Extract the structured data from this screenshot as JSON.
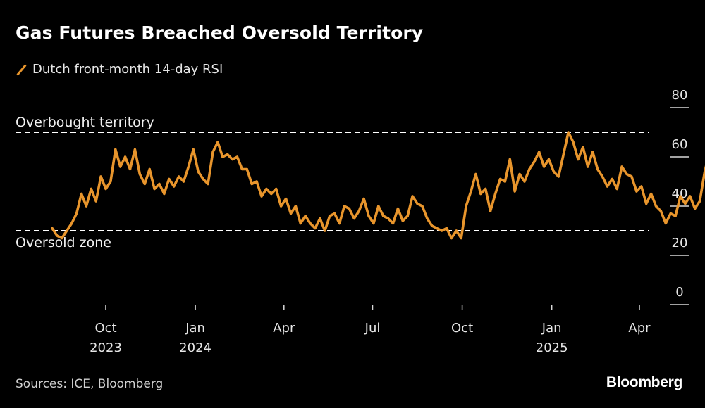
{
  "header": {
    "title": "Gas Futures Breached Oversold Territory"
  },
  "footer": {
    "source": "Sources: ICE, Bloomberg",
    "brand": "Bloomberg"
  },
  "colors": {
    "background": "#000000",
    "series": "#e8952c",
    "text": "#ffffff",
    "reference_lines": "#ffffff"
  },
  "chart_data": {
    "type": "line",
    "title": "Gas Futures Breached Oversold Territory",
    "xlabel": "",
    "ylabel": "",
    "ylim": [
      0,
      80
    ],
    "yticks": [
      0,
      20,
      40,
      60,
      80
    ],
    "ytick_labels": [
      "0",
      "20",
      "40",
      "60",
      "80"
    ],
    "y_axis_side": "right",
    "grid": false,
    "legend_placement": "top-left",
    "xlim": [
      "2023-08-01",
      "2025-04-15"
    ],
    "xticks": [
      {
        "date": "2023-10-01",
        "label": "Oct",
        "year": "2023"
      },
      {
        "date": "2024-01-01",
        "label": "Jan",
        "year": "2024"
      },
      {
        "date": "2024-04-01",
        "label": "Apr",
        "year": ""
      },
      {
        "date": "2024-07-01",
        "label": "Jul",
        "year": ""
      },
      {
        "date": "2024-10-01",
        "label": "Oct",
        "year": ""
      },
      {
        "date": "2025-01-01",
        "label": "Jan",
        "year": "2025"
      },
      {
        "date": "2025-04-01",
        "label": "Apr",
        "year": ""
      }
    ],
    "reference_lines": [
      {
        "value": 70,
        "label": "Overbought territory",
        "label_position": "above"
      },
      {
        "value": 30,
        "label": "Oversold zone",
        "label_position": "below"
      }
    ],
    "series": [
      {
        "name": "Dutch front-month 14-day RSI",
        "x_start": "2023-08-07",
        "step_days": 5,
        "values": [
          31,
          28,
          27,
          30,
          33,
          37,
          45,
          40,
          47,
          42,
          52,
          47,
          50,
          63,
          56,
          60,
          55,
          63,
          53,
          49,
          55,
          47,
          49,
          45,
          51,
          48,
          52,
          50,
          56,
          63,
          54,
          51,
          49,
          62,
          66,
          60,
          61,
          59,
          60,
          55,
          55,
          49,
          50,
          44,
          47,
          45,
          47,
          40,
          43,
          37,
          40,
          33,
          36,
          33,
          31,
          35,
          30,
          36,
          37,
          33,
          40,
          39,
          35,
          38,
          43,
          36,
          33,
          40,
          36,
          35,
          33,
          39,
          34,
          36,
          44,
          41,
          40,
          35,
          32,
          31,
          30,
          31,
          27,
          30,
          27,
          40,
          46,
          53,
          45,
          47,
          38,
          45,
          51,
          50,
          59,
          46,
          53,
          50,
          55,
          58,
          62,
          56,
          59,
          54,
          52,
          61,
          70,
          66,
          59,
          64,
          56,
          62,
          55,
          52,
          48,
          51,
          47,
          56,
          53,
          52,
          46,
          48,
          41,
          45,
          40,
          38,
          33,
          37,
          36,
          44,
          41,
          44,
          39,
          42,
          54,
          62,
          65,
          56,
          62,
          70,
          66,
          64,
          66,
          55,
          49,
          42,
          44,
          58,
          55,
          51,
          43,
          40,
          38,
          36,
          45,
          42,
          38,
          48,
          51,
          56,
          54,
          59,
          56,
          53,
          60,
          55,
          52,
          54,
          60,
          65,
          59,
          57,
          61,
          66,
          68,
          62,
          60,
          61,
          56,
          53,
          50,
          48,
          45,
          36,
          30,
          40,
          46,
          51,
          52,
          57,
          62,
          55,
          48,
          46,
          56,
          48,
          51,
          55,
          59,
          58,
          52,
          58,
          63,
          68,
          62,
          69,
          64,
          57,
          44,
          44,
          41,
          37,
          36,
          39,
          27,
          40,
          39,
          27,
          37,
          40,
          38,
          36,
          41,
          40,
          36,
          42,
          39,
          44,
          40,
          39,
          28,
          25
        ]
      }
    ]
  }
}
